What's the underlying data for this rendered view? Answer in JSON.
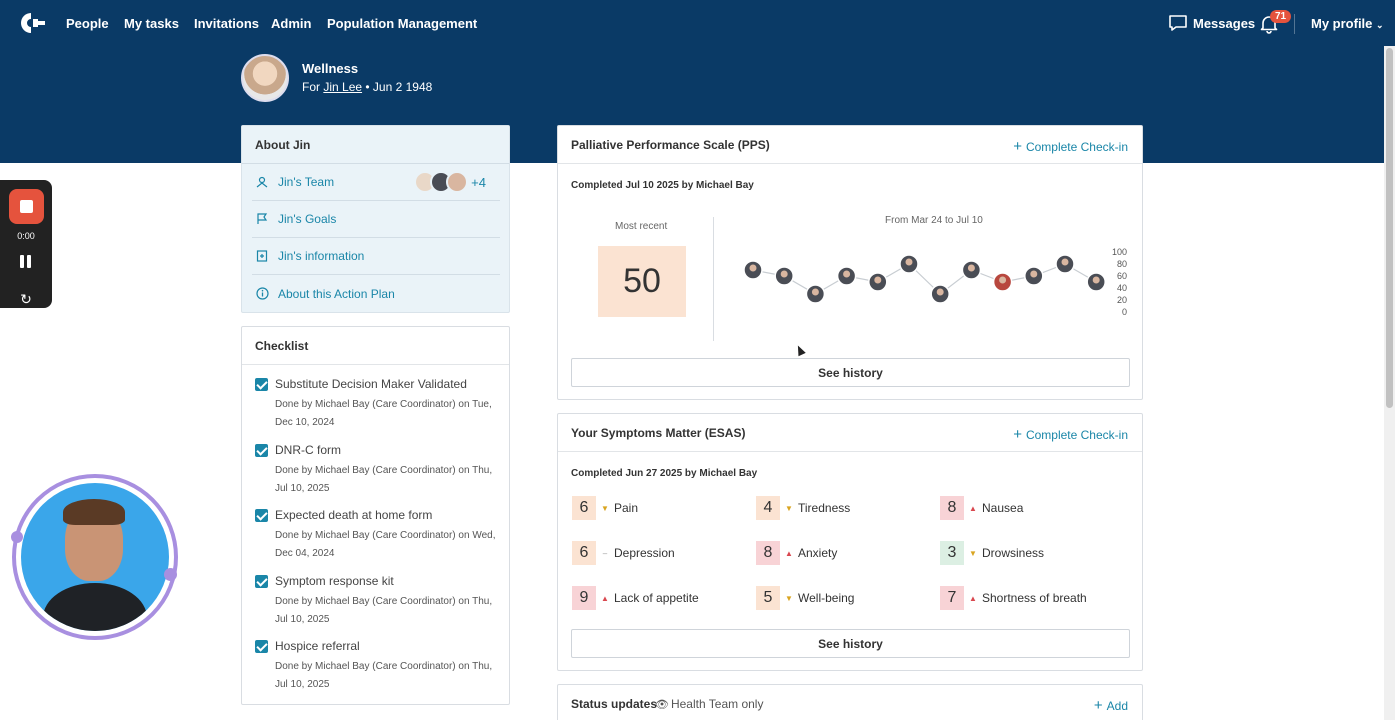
{
  "nav": {
    "items": [
      "People",
      "My tasks",
      "Invitations",
      "Admin",
      "Population Management"
    ],
    "messages": "Messages",
    "notifications_count": "71",
    "profile": "My profile"
  },
  "patient": {
    "title": "Wellness",
    "for_prefix": "For",
    "name": "Jin Lee",
    "dob": "• Jun 2 1948"
  },
  "about": {
    "title": "About Jin",
    "items": [
      {
        "label": "Jin's Team",
        "icon": "team-icon"
      },
      {
        "label": "Jin's Goals",
        "icon": "flag-icon"
      },
      {
        "label": "Jin's information",
        "icon": "info-card-icon"
      },
      {
        "label": "About this Action Plan",
        "icon": "info-icon"
      }
    ],
    "team_extra": "+4"
  },
  "checklist": {
    "title": "Checklist",
    "items": [
      {
        "title": "Substitute Decision Maker Validated",
        "desc": "Done by Michael Bay (Care Coordinator) on Tue, Dec 10, 2024"
      },
      {
        "title": "DNR-C form",
        "desc": "Done by Michael Bay (Care Coordinator) on Thu, Jul 10, 2025"
      },
      {
        "title": "Expected death at home form",
        "desc": "Done by Michael Bay (Care Coordinator) on Wed, Dec 04, 2024"
      },
      {
        "title": "Symptom response kit",
        "desc": "Done by Michael Bay (Care Coordinator) on Thu, Jul 10, 2025"
      },
      {
        "title": "Hospice referral",
        "desc": "Done by Michael Bay (Care Coordinator) on Thu, Jul 10, 2025"
      }
    ]
  },
  "pps": {
    "title": "Palliative Performance Scale (PPS)",
    "action": "Complete Check-in",
    "completed": "Completed Jul 10 2025 by Michael Bay",
    "most_recent_label": "Most recent",
    "most_recent_value": "50",
    "range_label": "From Mar 24 to Jul 10",
    "see_history": "See history"
  },
  "chart_data": {
    "type": "line",
    "values": [
      70,
      60,
      30,
      60,
      50,
      80,
      30,
      70,
      50,
      60,
      80,
      50
    ],
    "ylim": [
      0,
      100
    ],
    "yticks": [
      "100",
      "80",
      "60",
      "40",
      "20",
      "0"
    ]
  },
  "esas": {
    "title": "Your Symptoms Matter (ESAS)",
    "action": "Complete Check-in",
    "completed": "Completed Jun 27 2025 by Michael Bay",
    "symptoms": [
      {
        "score": "6",
        "label": "Pain",
        "trend": "down",
        "color": "#fbe3d2"
      },
      {
        "score": "4",
        "label": "Tiredness",
        "trend": "down",
        "color": "#fbe3d2"
      },
      {
        "score": "8",
        "label": "Nausea",
        "trend": "up",
        "color": "#f8d3d6"
      },
      {
        "score": "6",
        "label": "Depression",
        "trend": "flat",
        "color": "#fbe3d2"
      },
      {
        "score": "8",
        "label": "Anxiety",
        "trend": "up",
        "color": "#f8d3d6"
      },
      {
        "score": "3",
        "label": "Drowsiness",
        "trend": "down",
        "color": "#dcefe3"
      },
      {
        "score": "9",
        "label": "Lack of appetite",
        "trend": "up",
        "color": "#f8d3d6"
      },
      {
        "score": "5",
        "label": "Well-being",
        "trend": "down",
        "color": "#fbe3d2"
      },
      {
        "score": "7",
        "label": "Shortness of breath",
        "trend": "up",
        "color": "#f8d3d6"
      }
    ],
    "see_history": "See history"
  },
  "status": {
    "title": "Status updates",
    "visibility": "Health Team only",
    "action": "Add"
  },
  "recorder": {
    "time": "0:00"
  },
  "colors": {
    "header": "#0a3a66",
    "accent": "#1a86a8",
    "up": "#d9474f",
    "down": "#d9a521"
  }
}
